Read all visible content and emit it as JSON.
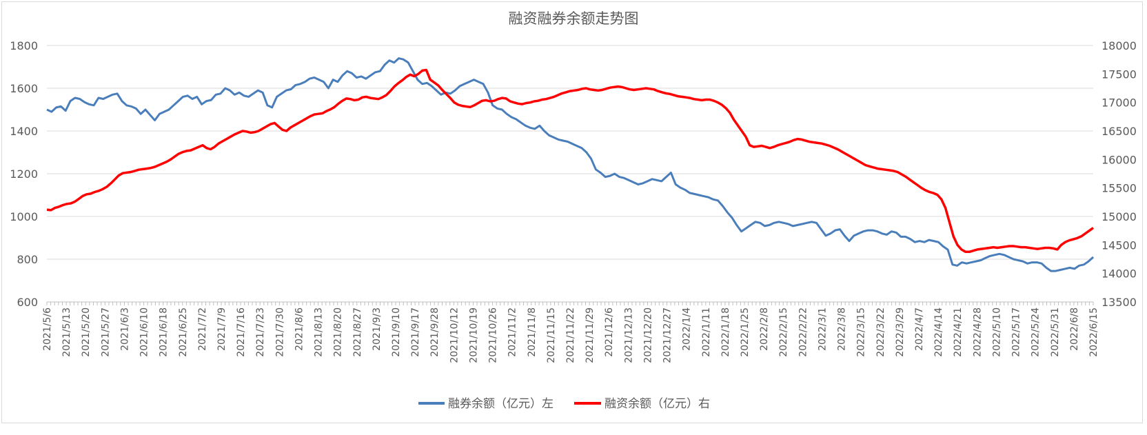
{
  "chart_data": {
    "type": "line",
    "title": "融资融券余额走势图",
    "left_axis": {
      "ylim": [
        600,
        1800
      ],
      "ticks": [
        600,
        800,
        1000,
        1200,
        1400,
        1600,
        1800
      ]
    },
    "right_axis": {
      "ylim": [
        13500,
        18000
      ],
      "ticks": [
        13500,
        14000,
        14500,
        15000,
        15500,
        16000,
        16500,
        17000,
        17500,
        18000
      ]
    },
    "x_tick_labels": [
      "2021/5/6",
      "2021/5/13",
      "2021/5/20",
      "2021/5/27",
      "2021/6/3",
      "2021/6/10",
      "2021/6/18",
      "2021/6/25",
      "2021/7/2",
      "2021/7/9",
      "2021/7/16",
      "2021/7/23",
      "2021/7/30",
      "2021/8/6",
      "2021/8/13",
      "2021/8/20",
      "2021/8/27",
      "2021/9/3",
      "2021/9/10",
      "2021/9/17",
      "2021/9/28",
      "2021/10/12",
      "2021/10/19",
      "2021/10/26",
      "2021/11/2",
      "2021/11/8",
      "2021/11/15",
      "2021/11/22",
      "2021/11/29",
      "2021/12/6",
      "2021/12/13",
      "2021/12/20",
      "2021/12/27",
      "2022/1/4",
      "2022/1/11",
      "2022/1/18",
      "2022/1/25",
      "2022/2/8",
      "2022/2/15",
      "2022/2/22",
      "2022/3/1",
      "2022/3/8",
      "2022/3/15",
      "2022/3/22",
      "2022/3/29",
      "2022/4/7",
      "2022/4/14",
      "2022/4/21",
      "2022/4/28",
      "2022/5/10",
      "2022/5/17",
      "2022/5/24",
      "2022/5/31",
      "2022/6/8",
      "2022/6/15"
    ],
    "grid": "horizontal",
    "legend_position": "bottom",
    "series": [
      {
        "name": "融券余额（亿元）左",
        "axis": "left",
        "color": "#4a7ebb",
        "values": [
          1500,
          1490,
          1510,
          1515,
          1495,
          1540,
          1555,
          1550,
          1535,
          1525,
          1520,
          1555,
          1550,
          1560,
          1570,
          1575,
          1540,
          1520,
          1515,
          1505,
          1480,
          1500,
          1475,
          1450,
          1480,
          1490,
          1500,
          1520,
          1540,
          1560,
          1565,
          1550,
          1560,
          1525,
          1540,
          1545,
          1570,
          1575,
          1600,
          1590,
          1570,
          1580,
          1565,
          1560,
          1575,
          1590,
          1580,
          1520,
          1510,
          1560,
          1575,
          1590,
          1595,
          1615,
          1620,
          1630,
          1645,
          1650,
          1640,
          1630,
          1600,
          1640,
          1630,
          1660,
          1680,
          1670,
          1650,
          1655,
          1645,
          1660,
          1675,
          1680,
          1710,
          1730,
          1720,
          1740,
          1735,
          1720,
          1680,
          1640,
          1620,
          1625,
          1610,
          1590,
          1570,
          1580,
          1575,
          1590,
          1610,
          1620,
          1630,
          1640,
          1630,
          1620,
          1580,
          1520,
          1505,
          1500,
          1480,
          1465,
          1455,
          1440,
          1425,
          1415,
          1410,
          1425,
          1400,
          1380,
          1370,
          1360,
          1355,
          1350,
          1340,
          1330,
          1320,
          1300,
          1270,
          1220,
          1205,
          1185,
          1190,
          1200,
          1185,
          1180,
          1170,
          1160,
          1150,
          1155,
          1165,
          1175,
          1170,
          1165,
          1185,
          1205,
          1150,
          1135,
          1125,
          1110,
          1105,
          1100,
          1095,
          1090,
          1080,
          1075,
          1050,
          1020,
          995,
          960,
          930,
          945,
          960,
          975,
          970,
          955,
          960,
          970,
          975,
          970,
          965,
          955,
          960,
          965,
          970,
          975,
          970,
          940,
          910,
          920,
          935,
          940,
          910,
          885,
          910,
          920,
          930,
          935,
          935,
          930,
          920,
          915,
          930,
          925,
          905,
          905,
          895,
          880,
          885,
          880,
          890,
          885,
          880,
          860,
          845,
          775,
          770,
          785,
          780,
          785,
          790,
          795,
          805,
          815,
          820,
          825,
          820,
          810,
          800,
          795,
          790,
          780,
          785,
          785,
          780,
          760,
          745,
          745,
          750,
          755,
          760,
          755,
          770,
          775,
          790,
          810
        ]
      },
      {
        "name": "融资余额（亿元）右",
        "axis": "right",
        "color": "#ff0000",
        "values": [
          15120,
          15110,
          15150,
          15170,
          15200,
          15220,
          15230,
          15260,
          15310,
          15360,
          15390,
          15400,
          15430,
          15450,
          15480,
          15520,
          15580,
          15650,
          15720,
          15760,
          15770,
          15780,
          15800,
          15820,
          15830,
          15840,
          15850,
          15870,
          15900,
          15930,
          15960,
          16000,
          16050,
          16100,
          16130,
          16150,
          16160,
          16190,
          16220,
          16250,
          16200,
          16180,
          16220,
          16280,
          16320,
          16360,
          16400,
          16440,
          16470,
          16500,
          16490,
          16470,
          16480,
          16500,
          16540,
          16580,
          16620,
          16640,
          16580,
          16520,
          16500,
          16560,
          16600,
          16640,
          16680,
          16720,
          16760,
          16790,
          16800,
          16810,
          16850,
          16880,
          16920,
          16980,
          17030,
          17070,
          17060,
          17040,
          17050,
          17090,
          17100,
          17080,
          17070,
          17060,
          17090,
          17130,
          17200,
          17280,
          17340,
          17390,
          17450,
          17490,
          17460,
          17500,
          17560,
          17570,
          17400,
          17350,
          17300,
          17220,
          17150,
          17080,
          17000,
          16960,
          16940,
          16930,
          16920,
          16950,
          16990,
          17030,
          17040,
          17020,
          17030,
          17060,
          17080,
          17070,
          17020,
          17000,
          16980,
          16970,
          16990,
          17000,
          17020,
          17030,
          17050,
          17060,
          17080,
          17100,
          17130,
          17160,
          17180,
          17200,
          17210,
          17220,
          17240,
          17250,
          17230,
          17220,
          17210,
          17220,
          17240,
          17260,
          17270,
          17280,
          17270,
          17250,
          17230,
          17220,
          17230,
          17240,
          17250,
          17240,
          17230,
          17200,
          17180,
          17160,
          17150,
          17130,
          17110,
          17100,
          17090,
          17080,
          17060,
          17050,
          17040,
          17050,
          17050,
          17030,
          17000,
          16960,
          16900,
          16820,
          16700,
          16600,
          16500,
          16400,
          16250,
          16220,
          16230,
          16240,
          16220,
          16200,
          16220,
          16250,
          16270,
          16290,
          16310,
          16340,
          16360,
          16350,
          16330,
          16310,
          16300,
          16290,
          16280,
          16260,
          16240,
          16210,
          16180,
          16140,
          16100,
          16060,
          16020,
          15980,
          15940,
          15900,
          15880,
          15860,
          15840,
          15830,
          15820,
          15810,
          15800,
          15780,
          15740,
          15700,
          15650,
          15600,
          15550,
          15500,
          15460,
          15430,
          15410,
          15380,
          15300,
          15150,
          14900,
          14650,
          14500,
          14420,
          14380,
          14380,
          14400,
          14420,
          14430,
          14440,
          14450,
          14460,
          14450,
          14460,
          14470,
          14480,
          14480,
          14470,
          14460,
          14460,
          14450,
          14440,
          14430,
          14440,
          14450,
          14450,
          14440,
          14420,
          14500,
          14550,
          14580,
          14600,
          14620,
          14650,
          14700,
          14750,
          14800
        ]
      }
    ]
  }
}
